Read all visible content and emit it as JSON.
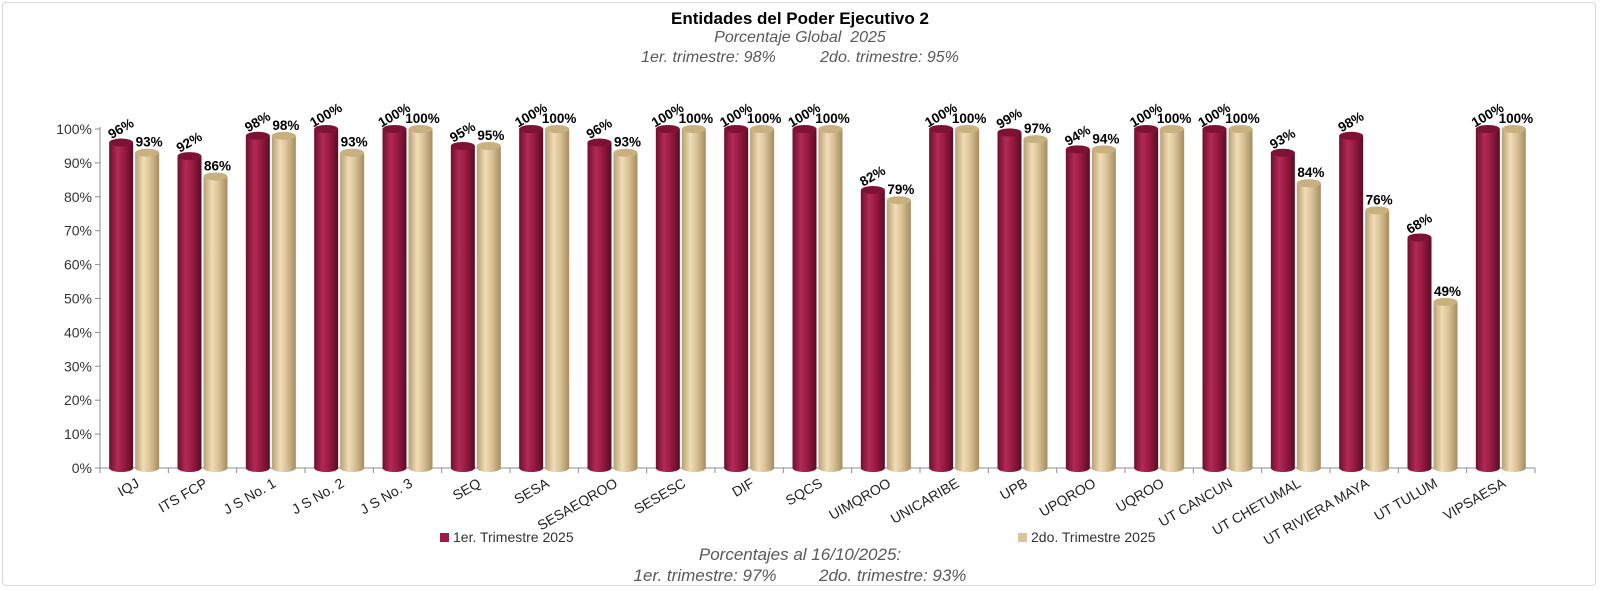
{
  "chart_data": {
    "type": "bar",
    "title": "Entidades del Poder Ejecutivo 2",
    "subtitle": "Porcentaje Global  2025",
    "subtitle2": "1er. trimestre: 98%          2do. trimestre: 95%",
    "footer_line1": "Porcentajes al 16/10/2025:",
    "footer_line2": "1er. trimestre: 97%         2do. trimestre: 93%",
    "ylim": [
      0,
      100
    ],
    "yticks": [
      0,
      10,
      20,
      30,
      40,
      50,
      60,
      70,
      80,
      90,
      100
    ],
    "ytick_labels": [
      "0%",
      "10%",
      "20%",
      "30%",
      "40%",
      "50%",
      "60%",
      "70%",
      "80%",
      "90%",
      "100%"
    ],
    "categories": [
      "IQJ",
      "ITS FCP",
      "J S No. 1",
      "J S No. 2",
      "J S No. 3",
      "SEQ",
      "SESA",
      "SESAEQROO",
      "SESESC",
      "DIF",
      "SQCS",
      "UIMQROO",
      "UNICARIBE",
      "UPB",
      "UPQROO",
      "UQROO",
      "UT CANCUN",
      "UT CHETUMAL",
      "UT RIVIERA MAYA",
      "UT TULUM",
      "VIPSAESA"
    ],
    "series": [
      {
        "name": "1er. Trimestre 2025",
        "color": "#9b1b44",
        "values": [
          96,
          92,
          98,
          100,
          100,
          95,
          100,
          96,
          100,
          100,
          100,
          82,
          100,
          99,
          94,
          100,
          100,
          93,
          98,
          68,
          100
        ],
        "labels": [
          "96%",
          "92%",
          "98%",
          "100%",
          "100%",
          "95%",
          "100%",
          "96%",
          "100%",
          "100%",
          "100%",
          "82%",
          "100%",
          "99%",
          "94%",
          "100%",
          "100%",
          "93%",
          "98%",
          "68%",
          "100%"
        ]
      },
      {
        "name": "2do. Trimestre 2025",
        "color": "#dcc49a",
        "values": [
          93,
          86,
          98,
          93,
          100,
          95,
          100,
          93,
          100,
          100,
          100,
          79,
          100,
          97,
          94,
          100,
          100,
          84,
          76,
          49,
          100
        ],
        "labels": [
          "93%",
          "86%",
          "98%",
          "93%",
          "100%",
          "95%",
          "100%",
          "93%",
          "100%",
          "100%",
          "100%",
          "79%",
          "100%",
          "97%",
          "94%",
          "100%",
          "100%",
          "84%",
          "76%",
          "49%",
          "100%"
        ]
      }
    ],
    "legend_position": "bottom"
  }
}
